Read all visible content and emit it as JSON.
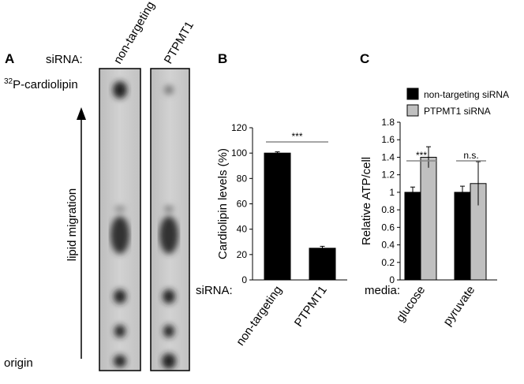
{
  "panel_a": {
    "panel_label": "A",
    "row_label": "siRNA:",
    "lanes": [
      "non-targeting",
      "PTPMT1"
    ],
    "superscript": "32",
    "band_label": "P-cardiolipin",
    "arrow_label": "lipid migration",
    "origin_label": "origin"
  },
  "chart_data": [
    {
      "type": "bar",
      "panel_label": "B",
      "y_label": "Cardiolipin levels (%)",
      "x_label": "siRNA:",
      "categories": [
        "non-targeting",
        "PTPMT1"
      ],
      "values": [
        100,
        25
      ],
      "errors": [
        1,
        1.5
      ],
      "color": "#000000",
      "ylim": [
        0,
        120
      ],
      "yticks": [
        0,
        20,
        40,
        60,
        80,
        100,
        120
      ],
      "annotations": [
        "***"
      ]
    },
    {
      "type": "bar",
      "panel_label": "C",
      "y_label": "Relative ATP/cell",
      "x_label": "media:",
      "categories": [
        "glucose",
        "pyruvate"
      ],
      "series": [
        {
          "name": "non-targeting siRNA",
          "color": "#000000",
          "values": [
            1.0,
            1.0
          ],
          "errors": [
            0.06,
            0.07
          ]
        },
        {
          "name": "PTPMT1 siRNA",
          "color": "#c0c0c0",
          "values": [
            1.4,
            1.1
          ],
          "errors": [
            0.12,
            0.25
          ]
        }
      ],
      "ylim": [
        0,
        1.8
      ],
      "yticks": [
        0,
        0.2,
        0.4,
        0.6,
        0.8,
        1,
        1.2,
        1.4,
        1.6,
        1.8
      ],
      "annotations": [
        "***",
        "n.s."
      ],
      "legend": "top"
    }
  ]
}
